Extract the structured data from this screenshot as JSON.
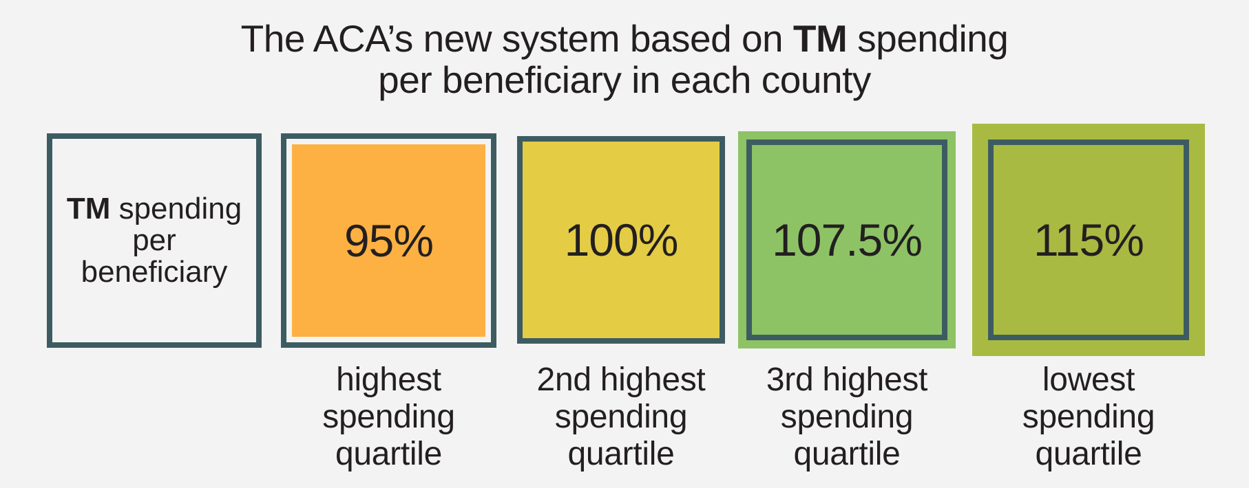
{
  "title": {
    "line1_pre": "The ACA’s new system based on ",
    "line1_bold": "TM",
    "line1_post": " spending",
    "line2": "per beneficiary in each county"
  },
  "label_box": {
    "bold": "TM",
    "text1": " spending",
    "text2": "per",
    "text3": "beneficiary"
  },
  "quartiles": [
    {
      "value": "95%",
      "caption": [
        "highest",
        "spending",
        "quartile"
      ],
      "color": "#fdb143"
    },
    {
      "value": "100%",
      "caption": [
        "2nd highest",
        "spending",
        "quartile"
      ],
      "color": "#e5cc45"
    },
    {
      "value": "107.5%",
      "caption": [
        "3rd highest",
        "spending",
        "quartile"
      ],
      "color": "#8dc365"
    },
    {
      "value": "115%",
      "caption": [
        "lowest",
        "spending",
        "quartile"
      ],
      "color": "#a9ba42"
    }
  ],
  "colors": {
    "border": "#3d5c61",
    "background": "#f3f3f3"
  }
}
